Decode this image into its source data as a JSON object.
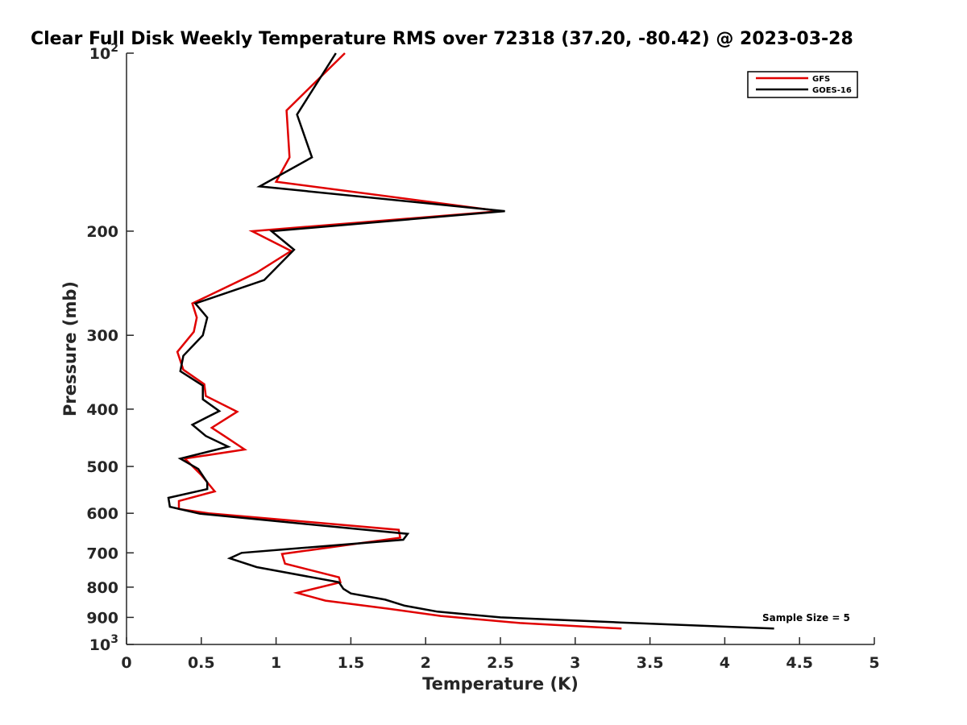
{
  "chart_data": {
    "type": "line",
    "title": "Clear Full Disk Weekly Temperature RMS over 72318 (37.20, -80.42) @ 2023-03-28",
    "xlabel": "Temperature (K)",
    "ylabel": "Pressure (mb)",
    "xlim": [
      0,
      5
    ],
    "ylim": [
      100,
      1000
    ],
    "yscale": "log",
    "y_reversed": true,
    "grid": false,
    "legend_position": "top-right",
    "annotation": "Sample Size = 5",
    "x_ticks": [
      "0",
      "0.5",
      "1",
      "1.5",
      "2",
      "2.5",
      "3",
      "3.5",
      "4",
      "4.5",
      "5"
    ],
    "y_ticks": [
      {
        "value": 100,
        "label": "10",
        "exp": "2"
      },
      {
        "value": 200,
        "label": "200",
        "exp": ""
      },
      {
        "value": 300,
        "label": "300",
        "exp": ""
      },
      {
        "value": 400,
        "label": "400",
        "exp": ""
      },
      {
        "value": 500,
        "label": "500",
        "exp": ""
      },
      {
        "value": 600,
        "label": "600",
        "exp": ""
      },
      {
        "value": 700,
        "label": "700",
        "exp": ""
      },
      {
        "value": 800,
        "label": "800",
        "exp": ""
      },
      {
        "value": 900,
        "label": "900",
        "exp": ""
      },
      {
        "value": 1000,
        "label": "10",
        "exp": "3"
      }
    ],
    "series": [
      {
        "name": "GFS",
        "color": "#e00000",
        "points": [
          [
            1.46,
            100
          ],
          [
            1.07,
            125
          ],
          [
            1.09,
            150
          ],
          [
            1.0,
            165
          ],
          [
            2.5,
            185
          ],
          [
            0.84,
            200
          ],
          [
            1.1,
            216
          ],
          [
            0.87,
            235
          ],
          [
            0.44,
            265
          ],
          [
            0.47,
            280
          ],
          [
            0.45,
            296
          ],
          [
            0.34,
            320
          ],
          [
            0.38,
            343
          ],
          [
            0.52,
            363
          ],
          [
            0.53,
            380
          ],
          [
            0.74,
            404
          ],
          [
            0.57,
            430
          ],
          [
            0.66,
            445
          ],
          [
            0.79,
            468
          ],
          [
            0.39,
            485
          ],
          [
            0.5,
            517
          ],
          [
            0.59,
            551
          ],
          [
            0.35,
            572
          ],
          [
            0.35,
            590
          ],
          [
            0.55,
            600
          ],
          [
            1.82,
            640
          ],
          [
            1.83,
            660
          ],
          [
            1.04,
            703
          ],
          [
            1.06,
            730
          ],
          [
            1.42,
            770
          ],
          [
            1.43,
            785
          ],
          [
            1.14,
            818
          ],
          [
            1.33,
            843
          ],
          [
            1.75,
            870
          ],
          [
            2.1,
            895
          ],
          [
            2.63,
            920
          ],
          [
            3.31,
            940
          ]
        ]
      },
      {
        "name": "GOES-16",
        "color": "#000000",
        "points": [
          [
            1.4,
            100
          ],
          [
            1.14,
            127
          ],
          [
            1.24,
            150
          ],
          [
            0.89,
            168
          ],
          [
            2.53,
            185
          ],
          [
            0.97,
            200
          ],
          [
            1.12,
            215
          ],
          [
            0.92,
            242
          ],
          [
            0.46,
            265
          ],
          [
            0.54,
            280
          ],
          [
            0.51,
            300
          ],
          [
            0.38,
            325
          ],
          [
            0.36,
            345
          ],
          [
            0.51,
            365
          ],
          [
            0.51,
            385
          ],
          [
            0.62,
            403
          ],
          [
            0.44,
            425
          ],
          [
            0.53,
            444
          ],
          [
            0.68,
            463
          ],
          [
            0.36,
            485
          ],
          [
            0.48,
            505
          ],
          [
            0.54,
            532
          ],
          [
            0.54,
            546
          ],
          [
            0.28,
            565
          ],
          [
            0.29,
            585
          ],
          [
            0.49,
            601
          ],
          [
            1.88,
            650
          ],
          [
            1.85,
            665
          ],
          [
            0.77,
            700
          ],
          [
            0.69,
            715
          ],
          [
            0.87,
            740
          ],
          [
            1.42,
            785
          ],
          [
            1.45,
            805
          ],
          [
            1.5,
            820
          ],
          [
            1.73,
            840
          ],
          [
            1.86,
            860
          ],
          [
            2.08,
            880
          ],
          [
            2.5,
            900
          ],
          [
            3.3,
            918
          ],
          [
            4.33,
            940
          ]
        ]
      }
    ]
  }
}
